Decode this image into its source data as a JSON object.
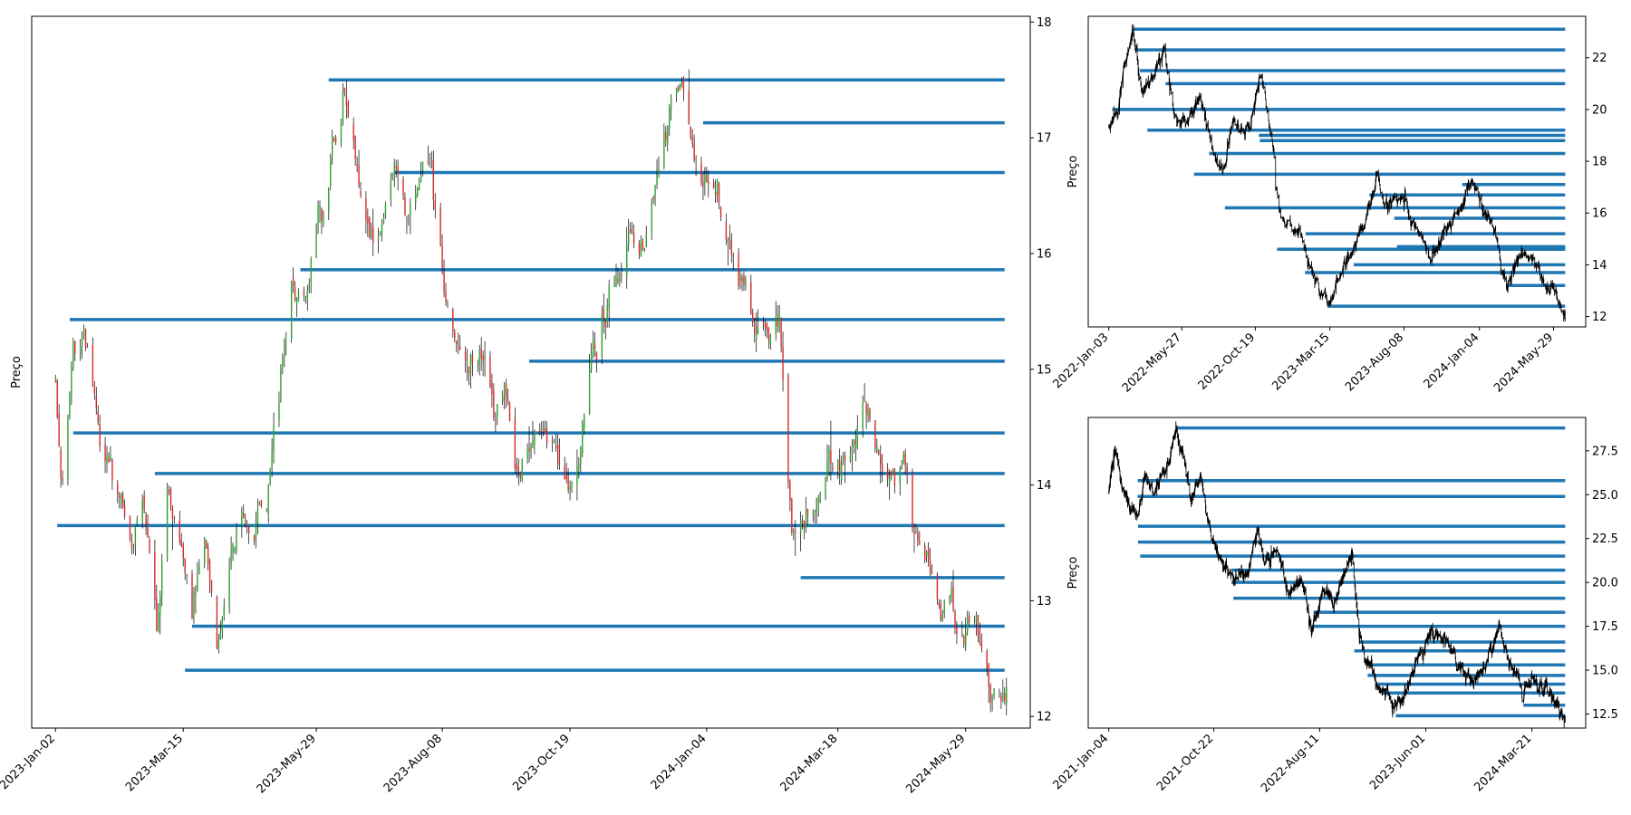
{
  "chart_data": [
    {
      "type": "candlestick",
      "ylabel": "Preço",
      "yaxis_side": "right",
      "ylim": [
        11.9,
        18.05
      ],
      "yticks": [
        12,
        13,
        14,
        15,
        16,
        17,
        18
      ],
      "x_tick_labels": [
        "2023-Jan-02",
        "2023-Mar-15",
        "2023-May-29",
        "2023-Aug-08",
        "2023-Oct-19",
        "2024-Jan-04",
        "2024-Mar-18",
        "2024-May-29"
      ],
      "x_range": [
        "2023-01-02",
        "2024-06-21"
      ],
      "price_path": [
        [
          "2023-01-02",
          14.7
        ],
        [
          "2023-01-06",
          14.0
        ],
        [
          "2023-01-12",
          15.2
        ],
        [
          "2023-01-18",
          15.35
        ],
        [
          "2023-01-24",
          14.6
        ],
        [
          "2023-01-30",
          14.2
        ],
        [
          "2023-02-06",
          13.9
        ],
        [
          "2023-02-13",
          13.6
        ],
        [
          "2023-02-21",
          13.8
        ],
        [
          "2023-02-28",
          12.7
        ],
        [
          "2023-03-06",
          13.9
        ],
        [
          "2023-03-13",
          13.5
        ],
        [
          "2023-03-20",
          12.9
        ],
        [
          "2023-03-27",
          13.6
        ],
        [
          "2023-04-03",
          12.4
        ],
        [
          "2023-04-10",
          13.2
        ],
        [
          "2023-04-17",
          13.8
        ],
        [
          "2023-04-24",
          13.6
        ],
        [
          "2023-05-01",
          13.8
        ],
        [
          "2023-05-08",
          15.0
        ],
        [
          "2023-05-15",
          15.8
        ],
        [
          "2023-05-22",
          15.5
        ],
        [
          "2023-05-31",
          16.3
        ],
        [
          "2023-06-07",
          16.8
        ],
        [
          "2023-06-14",
          17.3
        ],
        [
          "2023-06-21",
          16.6
        ],
        [
          "2023-06-28",
          16.0
        ],
        [
          "2023-07-05",
          16.3
        ],
        [
          "2023-07-12",
          16.8
        ],
        [
          "2023-07-19",
          16.4
        ],
        [
          "2023-07-26",
          16.6
        ],
        [
          "2023-08-02",
          16.7
        ],
        [
          "2023-08-09",
          15.8
        ],
        [
          "2023-08-16",
          15.3
        ],
        [
          "2023-08-23",
          15.0
        ],
        [
          "2023-08-30",
          15.2
        ],
        [
          "2023-09-06",
          14.5
        ],
        [
          "2023-09-13",
          14.8
        ],
        [
          "2023-09-20",
          14.0
        ],
        [
          "2023-09-27",
          14.3
        ],
        [
          "2023-10-04",
          14.6
        ],
        [
          "2023-10-11",
          14.3
        ],
        [
          "2023-10-18",
          14.0
        ],
        [
          "2023-10-25",
          14.3
        ],
        [
          "2023-11-01",
          15.2
        ],
        [
          "2023-11-08",
          15.6
        ],
        [
          "2023-11-15",
          15.8
        ],
        [
          "2023-11-22",
          16.2
        ],
        [
          "2023-11-29",
          16.0
        ],
        [
          "2023-12-06",
          16.6
        ],
        [
          "2023-12-13",
          17.1
        ],
        [
          "2023-12-20",
          17.5
        ],
        [
          "2023-12-27",
          16.9
        ],
        [
          "2024-01-03",
          16.6
        ],
        [
          "2024-01-10",
          16.7
        ],
        [
          "2024-01-17",
          16.0
        ],
        [
          "2024-01-24",
          15.6
        ],
        [
          "2024-01-31",
          15.3
        ],
        [
          "2024-02-07",
          15.3
        ],
        [
          "2024-02-14",
          15.4
        ],
        [
          "2024-02-21",
          13.5
        ],
        [
          "2024-02-28",
          13.8
        ],
        [
          "2024-03-06",
          13.9
        ],
        [
          "2024-03-13",
          14.2
        ],
        [
          "2024-03-20",
          14.1
        ],
        [
          "2024-03-27",
          14.3
        ],
        [
          "2024-04-03",
          14.6
        ],
        [
          "2024-04-10",
          14.2
        ],
        [
          "2024-04-17",
          13.8
        ],
        [
          "2024-04-24",
          14.1
        ],
        [
          "2024-05-01",
          13.6
        ],
        [
          "2024-05-08",
          13.3
        ],
        [
          "2024-05-15",
          12.9
        ],
        [
          "2024-05-22",
          12.9
        ],
        [
          "2024-05-29",
          12.7
        ],
        [
          "2024-06-05",
          12.8
        ],
        [
          "2024-06-12",
          12.4
        ],
        [
          "2024-06-21",
          12.3
        ]
      ],
      "support_resistance_lines": [
        {
          "start": "2023-01-03",
          "level": 13.65
        },
        {
          "start": "2023-01-10",
          "level": 15.43
        },
        {
          "start": "2023-01-12",
          "level": 14.45
        },
        {
          "start": "2023-02-27",
          "level": 14.1
        },
        {
          "start": "2023-03-16",
          "level": 12.4
        },
        {
          "start": "2023-03-20",
          "level": 12.78
        },
        {
          "start": "2023-05-20",
          "level": 15.86
        },
        {
          "start": "2023-06-05",
          "level": 17.5
        },
        {
          "start": "2023-07-12",
          "level": 16.7
        },
        {
          "start": "2023-09-26",
          "level": 15.07
        },
        {
          "start": "2024-01-02",
          "level": 17.13
        },
        {
          "start": "2024-02-26",
          "level": 13.2
        }
      ]
    },
    {
      "type": "line",
      "ylabel": "Preço",
      "yaxis_side": "right",
      "ylim": [
        11.6,
        23.6
      ],
      "yticks": [
        12,
        14,
        16,
        18,
        20,
        22
      ],
      "x_tick_labels": [
        "2022-Jan-03",
        "2022-May-27",
        "2022-Oct-19",
        "2023-Mar-15",
        "2023-Aug-08",
        "2024-Jan-04",
        "2024-May-29"
      ],
      "x_range": [
        "2022-01-03",
        "2024-06-21"
      ],
      "price_path": [
        [
          "2022-01-03",
          19.5
        ],
        [
          "2022-01-20",
          20.0
        ],
        [
          "2022-02-08",
          22.2
        ],
        [
          "2022-02-18",
          23.1
        ],
        [
          "2022-03-10",
          20.7
        ],
        [
          "2022-04-05",
          21.2
        ],
        [
          "2022-04-22",
          22.5
        ],
        [
          "2022-05-10",
          20.0
        ],
        [
          "2022-06-01",
          19.3
        ],
        [
          "2022-07-01",
          20.5
        ],
        [
          "2022-07-25",
          18.4
        ],
        [
          "2022-08-15",
          17.5
        ],
        [
          "2022-09-05",
          19.5
        ],
        [
          "2022-09-25",
          19.2
        ],
        [
          "2022-10-10",
          19.6
        ],
        [
          "2022-10-20",
          20.4
        ],
        [
          "2022-10-30",
          21.6
        ],
        [
          "2022-11-10",
          20.0
        ],
        [
          "2022-11-25",
          18.3
        ],
        [
          "2022-11-28",
          17.2
        ],
        [
          "2022-12-15",
          15.5
        ],
        [
          "2023-01-15",
          15.2
        ],
        [
          "2023-02-10",
          13.5
        ],
        [
          "2023-03-10",
          12.5
        ],
        [
          "2023-04-10",
          13.8
        ],
        [
          "2023-05-20",
          15.5
        ],
        [
          "2023-06-15",
          17.3
        ],
        [
          "2023-07-01",
          16.4
        ],
        [
          "2023-08-08",
          16.7
        ],
        [
          "2023-09-01",
          15.3
        ],
        [
          "2023-10-01",
          14.1
        ],
        [
          "2023-11-01",
          15.6
        ],
        [
          "2023-12-01",
          16.2
        ],
        [
          "2023-12-20",
          17.5
        ],
        [
          "2024-01-10",
          16.0
        ],
        [
          "2024-02-01",
          15.4
        ],
        [
          "2024-02-26",
          13.2
        ],
        [
          "2024-03-15",
          14.0
        ],
        [
          "2024-04-10",
          14.5
        ],
        [
          "2024-05-01",
          13.4
        ],
        [
          "2024-06-01",
          12.9
        ],
        [
          "2024-06-21",
          12.2
        ]
      ],
      "support_resistance_lines": [
        {
          "start": "2022-01-10",
          "level": 20.0
        },
        {
          "start": "2022-02-20",
          "level": 23.1
        },
        {
          "start": "2022-02-25",
          "level": 22.3
        },
        {
          "start": "2022-03-05",
          "level": 21.5
        },
        {
          "start": "2022-03-20",
          "level": 19.2
        },
        {
          "start": "2022-04-25",
          "level": 21.0
        },
        {
          "start": "2022-06-20",
          "level": 17.5
        },
        {
          "start": "2022-07-20",
          "level": 18.3
        },
        {
          "start": "2022-08-20",
          "level": 16.2
        },
        {
          "start": "2022-10-26",
          "level": 19.0
        },
        {
          "start": "2022-10-28",
          "level": 18.8
        },
        {
          "start": "2022-12-01",
          "level": 14.6
        },
        {
          "start": "2023-01-25",
          "level": 13.7
        },
        {
          "start": "2023-01-26",
          "level": 15.2
        },
        {
          "start": "2023-03-10",
          "level": 12.4
        },
        {
          "start": "2023-05-01",
          "level": 14.0
        },
        {
          "start": "2023-06-01",
          "level": 16.7
        },
        {
          "start": "2023-07-20",
          "level": 15.8
        },
        {
          "start": "2023-07-25",
          "level": 14.7
        },
        {
          "start": "2023-12-01",
          "level": 17.1
        },
        {
          "start": "2024-01-02",
          "level": 17.5
        },
        {
          "start": "2024-02-26",
          "level": 13.2
        }
      ]
    },
    {
      "type": "line",
      "ylabel": "Preço",
      "yaxis_side": "right",
      "ylim": [
        11.7,
        29.4
      ],
      "yticks": [
        12.5,
        15.0,
        17.5,
        20.0,
        22.5,
        25.0,
        27.5
      ],
      "x_tick_labels": [
        "2021-Jan-04",
        "2021-Oct-22",
        "2022-Aug-11",
        "2023-Jun-01",
        "2024-Mar-21"
      ],
      "x_range": [
        "2021-01-04",
        "2024-06-21"
      ],
      "price_path": [
        [
          "2021-01-04",
          25.0
        ],
        [
          "2021-01-20",
          27.5
        ],
        [
          "2021-02-10",
          25.5
        ],
        [
          "2021-03-01",
          24.5
        ],
        [
          "2021-03-25",
          23.6
        ],
        [
          "2021-04-15",
          26.0
        ],
        [
          "2021-05-10",
          25.0
        ],
        [
          "2021-06-15",
          26.5
        ],
        [
          "2021-07-10",
          28.8
        ],
        [
          "2021-08-01",
          27.0
        ],
        [
          "2021-08-20",
          24.5
        ],
        [
          "2021-09-15",
          26.0
        ],
        [
          "2021-10-15",
          22.5
        ],
        [
          "2021-11-15",
          21.0
        ],
        [
          "2021-12-15",
          20.0
        ],
        [
          "2022-01-20",
          20.6
        ],
        [
          "2022-02-20",
          22.8
        ],
        [
          "2022-03-10",
          21.2
        ],
        [
          "2022-04-15",
          21.8
        ],
        [
          "2022-05-20",
          19.0
        ],
        [
          "2022-06-20",
          20.5
        ],
        [
          "2022-07-20",
          17.4
        ],
        [
          "2022-08-20",
          19.5
        ],
        [
          "2022-09-20",
          18.8
        ],
        [
          "2022-10-20",
          20.3
        ],
        [
          "2022-11-10",
          21.5
        ],
        [
          "2022-11-28",
          17.0
        ],
        [
          "2022-12-15",
          15.5
        ],
        [
          "2023-01-20",
          14.2
        ],
        [
          "2023-02-20",
          13.5
        ],
        [
          "2023-03-10",
          12.6
        ],
        [
          "2023-04-10",
          13.9
        ],
        [
          "2023-05-15",
          16.0
        ],
        [
          "2023-06-15",
          17.2
        ],
        [
          "2023-08-01",
          16.5
        ],
        [
          "2023-09-15",
          14.8
        ],
        [
          "2023-10-15",
          14.3
        ],
        [
          "2023-12-01",
          16.3
        ],
        [
          "2023-12-20",
          17.5
        ],
        [
          "2024-01-15",
          15.6
        ],
        [
          "2024-02-10",
          14.6
        ],
        [
          "2024-02-26",
          13.6
        ],
        [
          "2024-03-20",
          14.6
        ],
        [
          "2024-04-20",
          14.1
        ],
        [
          "2024-05-20",
          13.2
        ],
        [
          "2024-06-21",
          12.2
        ]
      ],
      "support_resistance_lines": [
        {
          "start": "2021-07-10",
          "level": 28.8
        },
        {
          "start": "2021-03-25",
          "level": 25.8
        },
        {
          "start": "2021-03-25",
          "level": 24.9
        },
        {
          "start": "2021-03-26",
          "level": 23.2
        },
        {
          "start": "2021-03-26",
          "level": 22.3
        },
        {
          "start": "2021-04-01",
          "level": 21.5
        },
        {
          "start": "2021-12-10",
          "level": 20.7
        },
        {
          "start": "2021-12-10",
          "level": 20.0
        },
        {
          "start": "2021-12-15",
          "level": 19.1
        },
        {
          "start": "2022-07-25",
          "level": 18.3
        },
        {
          "start": "2022-07-20",
          "level": 17.5
        },
        {
          "start": "2022-11-15",
          "level": 16.1
        },
        {
          "start": "2022-12-01",
          "level": 16.6
        },
        {
          "start": "2022-12-20",
          "level": 15.3
        },
        {
          "start": "2022-12-22",
          "level": 14.7
        },
        {
          "start": "2023-01-15",
          "level": 14.2
        },
        {
          "start": "2023-02-01",
          "level": 13.7
        },
        {
          "start": "2023-03-10",
          "level": 12.4
        },
        {
          "start": "2024-02-26",
          "level": 13.0
        }
      ]
    }
  ]
}
